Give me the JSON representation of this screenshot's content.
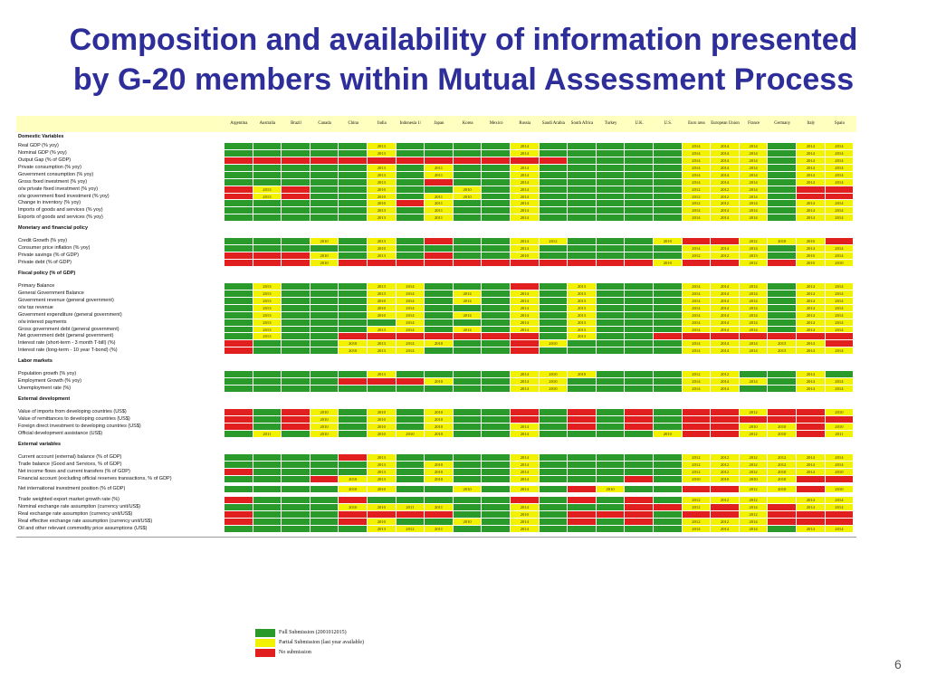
{
  "title": {
    "line1": "Composition and availability of information presented",
    "line2": "by G-20 members within Mutual Assessment Process"
  },
  "colors": {
    "G": "#2a9a2a",
    "Y": "#f2f200",
    "R": "#e21f1f"
  },
  "columns": [
    "Argentina",
    "Australia",
    "Brazil",
    "Canada",
    "China",
    "India",
    "Indonesia 1/",
    "Japan",
    "Korea",
    "Mexico",
    "Russia",
    "Saudi Arabia",
    "South Africa",
    "Turkey",
    "U.K.",
    "U.S.",
    "Euro area",
    "European Union",
    "France",
    "Germany",
    "Italy",
    "Spain"
  ],
  "rows": [
    {
      "type": "section",
      "label": "Domestic Variables"
    },
    {
      "type": "data",
      "label": "Real GDP (% yoy)",
      "cells": "GGGGGYGGGGYGGGGGYYYGYY",
      "years": {
        "5": "2013",
        "10": "2014",
        "16": "2014",
        "17": "2014",
        "18": "2014",
        "20": "2014",
        "21": "2014"
      }
    },
    {
      "type": "data",
      "label": "Nominal GDP (% yoy)",
      "cells": "GGGGGYGGGGYGGGGGYYYGYY",
      "years": {
        "5": "2013",
        "10": "2014",
        "16": "2014",
        "17": "2014",
        "18": "2014",
        "20": "2014",
        "21": "2014"
      }
    },
    {
      "type": "data",
      "label": "Output Gap (% of GDP)",
      "cells": "RRRRRRRRRRRRGGGGYYYGYY",
      "years": {
        "16": "2014",
        "17": "2014",
        "18": "2014",
        "20": "2014",
        "21": "2014"
      }
    },
    {
      "type": "data",
      "label": "Private consumption (% yoy)",
      "cells": "GGGGGYGYGGYGGGGGYYYGYY",
      "years": {
        "5": "2013",
        "7": "2011",
        "10": "2014",
        "16": "2014",
        "17": "2014",
        "18": "2014",
        "20": "2014",
        "21": "2014"
      }
    },
    {
      "type": "data",
      "label": "Government consumption (% yoy)",
      "cells": "GGGGGYGYGGYGGGGGYYYGYY",
      "years": {
        "5": "2013",
        "7": "2011",
        "10": "2014",
        "16": "2014",
        "17": "2014",
        "18": "2014",
        "20": "2014",
        "21": "2014"
      }
    },
    {
      "type": "data",
      "label": "Gross fixed investment (% yoy)",
      "cells": "GGGGGYGRGGYGGGGGYYYGYY",
      "years": {
        "5": "2013",
        "10": "2014",
        "16": "2014",
        "17": "2014",
        "18": "2014",
        "20": "2014",
        "21": "2014"
      }
    },
    {
      "type": "data",
      "label": "  o/w private fixed investment (% yoy)",
      "cells": "RYRGGYGGYGYGGGGGYYYGRR",
      "years": {
        "1": "2013",
        "5": "2010",
        "8": "2010",
        "10": "2014",
        "16": "2012",
        "17": "2012",
        "18": "2014"
      }
    },
    {
      "type": "data",
      "label": "  o/w government fixed investment (% yoy)",
      "cells": "RYRGGYGYYGYGGGGGYYYGRR",
      "years": {
        "1": "2013",
        "5": "2010",
        "7": "2011",
        "8": "2010",
        "10": "2014",
        "16": "2012",
        "17": "2012",
        "18": "2014"
      }
    },
    {
      "type": "data",
      "label": "Change in inventory (% yoy)",
      "cells": "GGGGGYRYGGYGGGGGYYYGYY",
      "years": {
        "5": "2010",
        "7": "2011",
        "10": "2014",
        "16": "2012",
        "17": "2012",
        "18": "2014",
        "20": "2014",
        "21": "2014"
      }
    },
    {
      "type": "data",
      "label": "Imports of goods and services (% yoy)",
      "cells": "GGGGGYGYGGYGGGGGYYYGYY",
      "years": {
        "5": "2013",
        "7": "2011",
        "10": "2014",
        "16": "2014",
        "17": "2014",
        "18": "2014",
        "20": "2014",
        "21": "2014"
      }
    },
    {
      "type": "data",
      "label": "Exports of goods and services (% yoy)",
      "cells": "GGGGGYGYGGYGGGGGYYYGYY",
      "years": {
        "5": "2013",
        "7": "2011",
        "10": "2014",
        "16": "2014",
        "17": "2014",
        "18": "2014",
        "20": "2014",
        "21": "2014"
      }
    },
    {
      "type": "blank"
    },
    {
      "type": "section",
      "label": "Monetary and financial policy"
    },
    {
      "type": "blank"
    },
    {
      "type": "data",
      "label": "Credit Growth (% yoy)",
      "cells": "GGGYGYGRGGYYGGGYRRYYYR",
      "years": {
        "3": "2010",
        "5": "2013",
        "10": "2014",
        "11": "2012",
        "15": "2010",
        "18": "2012",
        "19": "2010",
        "20": "2010"
      }
    },
    {
      "type": "data",
      "label": "Consumer price inflation (% yoy)",
      "cells": "GGGGGYGGGGYGGGGGYYYGYY",
      "years": {
        "5": "2010",
        "10": "2014",
        "16": "2014",
        "17": "2014",
        "18": "2014",
        "20": "2014",
        "21": "2014"
      }
    },
    {
      "type": "data",
      "label": "Private savings (% of GDP)",
      "cells": "RRRYGYGRGGYGGGGGYYYGYY",
      "years": {
        "3": "2010",
        "5": "2013",
        "10": "2010",
        "16": "2012",
        "17": "2012",
        "18": "2013",
        "20": "2010",
        "21": "2014"
      }
    },
    {
      "type": "data",
      "label": "Private debt (% of GDP)",
      "cells": "RRRYRRRRRRRRRRRYRRYRYY",
      "years": {
        "3": "2010",
        "15": "2010",
        "18": "2012",
        "20": "2010",
        "21": "2010"
      }
    },
    {
      "type": "blank"
    },
    {
      "type": "section",
      "label": "Fiscal policy (% of GDP)"
    },
    {
      "type": "blank"
    },
    {
      "type": "data",
      "label": "Primary Balance",
      "cells": "GYGGGYYGGGRGYGGGYYYGYY",
      "years": {
        "1": "2013",
        "5": "2013",
        "6": "2014",
        "12": "2013",
        "16": "2014",
        "17": "2014",
        "18": "2014",
        "20": "2014",
        "21": "2014"
      }
    },
    {
      "type": "data",
      "label": "General Government Balance",
      "cells": "GYGGGYYGYGYGYGGGYYYGYY",
      "years": {
        "1": "2013",
        "5": "2013",
        "6": "2014",
        "8": "2014",
        "10": "2014",
        "12": "2013",
        "16": "2014",
        "17": "2014",
        "18": "2014",
        "20": "2014",
        "21": "2014"
      }
    },
    {
      "type": "data",
      "label": "Government revenue (general government)",
      "cells": "GYGGGYYGYGYGYGGGYYYGYY",
      "years": {
        "1": "2013",
        "5": "2010",
        "6": "2014",
        "8": "2014",
        "10": "2014",
        "12": "2013",
        "16": "2014",
        "17": "2014",
        "18": "2014",
        "20": "2014",
        "21": "2014"
      }
    },
    {
      "type": "data",
      "label": "  o/w tax revenue",
      "cells": "GYGGGYYGGGYGYGGGYYYGYY",
      "years": {
        "1": "2013",
        "5": "2010",
        "6": "2014",
        "10": "2014",
        "12": "2013",
        "16": "2014",
        "17": "2014",
        "18": "2014",
        "20": "2014",
        "21": "2014"
      }
    },
    {
      "type": "data",
      "label": "Government expenditure (general government)",
      "cells": "GYGGGYYGYGYGYGGGYYYGYY",
      "years": {
        "1": "2013",
        "5": "2010",
        "6": "2014",
        "8": "2014",
        "10": "2014",
        "12": "2013",
        "16": "2014",
        "17": "2014",
        "18": "2014",
        "20": "2014",
        "21": "2014"
      }
    },
    {
      "type": "data",
      "label": "  o/w interest payments",
      "cells": "GYGGGGYGGGYGYGGGYYYGYY",
      "years": {
        "1": "2013",
        "6": "2014",
        "10": "2014",
        "12": "2013",
        "16": "2014",
        "17": "2014",
        "18": "2014",
        "20": "2014",
        "21": "2014"
      }
    },
    {
      "type": "data",
      "label": "Gross government debt (general government)",
      "cells": "GYGGGYYGYGYGYGGGYYYGYY",
      "years": {
        "1": "2013",
        "5": "2013",
        "6": "2014",
        "8": "2014",
        "10": "2014",
        "12": "2013",
        "16": "2014",
        "17": "2014",
        "18": "2014",
        "20": "2014",
        "21": "2014"
      }
    },
    {
      "type": "data",
      "label": "Net government debt (general government)",
      "cells": "GYGGRRRRRRRGYGGRRRRRRR",
      "years": {
        "1": "2013",
        "12": "2013"
      }
    },
    {
      "type": "data",
      "label": "Interest rate (short-term - 3 month T-bill) (%)",
      "cells": "RGGGYYYYGGRYGGGGYYYYYR",
      "years": {
        "4": "2010",
        "5": "2013",
        "6": "2014",
        "7": "2010",
        "11": "2010",
        "16": "2014",
        "17": "2014",
        "18": "2014",
        "19": "2013",
        "20": "2014"
      }
    },
    {
      "type": "data",
      "label": "Interest rate (long-term - 10 year T-bond) (%)",
      "cells": "RGGGYYYGGGRGGGGGYYYYYY",
      "years": {
        "4": "2010",
        "5": "2013",
        "6": "2014",
        "16": "2014",
        "17": "2014",
        "18": "2014",
        "19": "2013",
        "20": "2014",
        "21": "2014"
      }
    },
    {
      "type": "blank"
    },
    {
      "type": "section",
      "label": "Labor markets"
    },
    {
      "type": "blank"
    },
    {
      "type": "data",
      "label": "Population growth (% yoy)",
      "cells": "GGGGGYGGGGYYYGGGYYGGYG",
      "years": {
        "5": "2013",
        "10": "2014",
        "11": "2010",
        "12": "2010",
        "16": "2012",
        "17": "2012",
        "20": "2014"
      }
    },
    {
      "type": "data",
      "label": "Employment Growth (% yoy)",
      "cells": "GGGGRRRYGGYYGGGGYYYGYY",
      "years": {
        "7": "2010",
        "10": "2014",
        "11": "2010",
        "16": "2014",
        "17": "2014",
        "18": "2014",
        "20": "2014",
        "21": "2014"
      }
    },
    {
      "type": "data",
      "label": "Unemployment rate (%)",
      "cells": "GGGGGGGGGGYYGGGGYYGGYY",
      "years": {
        "10": "2014",
        "11": "2010",
        "16": "2014",
        "17": "2014",
        "20": "2014",
        "21": "2014"
      }
    },
    {
      "type": "blank"
    },
    {
      "type": "section",
      "label": "External development"
    },
    {
      "type": "blank"
    },
    {
      "type": "data",
      "label": "Value of imports from developing countries (US$)",
      "cells": "RGRYGYGYGGRGRGRGRRYRRY",
      "years": {
        "3": "2010",
        "5": "2010",
        "7": "2010",
        "18": "2012",
        "21": "2010"
      }
    },
    {
      "type": "data",
      "label": "Value of remittances to developing countries (US$)",
      "cells": "RGRYGYGYGGRGRGRGRRRRRR",
      "years": {
        "3": "2010",
        "5": "2010",
        "7": "2010"
      }
    },
    {
      "type": "data",
      "label": "Foreign direct investment to developing countries (US$)",
      "cells": "RGRYGYGYGGYGRGRGRRYYRY",
      "years": {
        "3": "2010",
        "5": "2010",
        "7": "2010",
        "10": "2014",
        "18": "2010",
        "19": "2010",
        "21": "2010"
      }
    },
    {
      "type": "data",
      "label": "Official development assistance (US$)",
      "cells": "GYGYGYYYGGYGGGGYRRYYRY",
      "years": {
        "1": "2011",
        "3": "2010",
        "5": "2010",
        "6": "2010",
        "7": "2010",
        "10": "2014",
        "15": "2010",
        "18": "2012",
        "19": "2010",
        "21": "2011"
      }
    },
    {
      "type": "blank"
    },
    {
      "type": "section",
      "label": "External variables"
    },
    {
      "type": "blank"
    },
    {
      "type": "data",
      "label": "Current account (external) balance (% of GDP)",
      "cells": "GGGGRYGGGGYGGGGGYYYYYY",
      "years": {
        "5": "2013",
        "10": "2014",
        "16": "2012",
        "17": "2012",
        "18": "2012",
        "19": "2012",
        "20": "2014",
        "21": "2014"
      }
    },
    {
      "type": "data",
      "label": "Trade balance (Good and Services, % of GDP)",
      "cells": "GGGGGYGYGGYGGGGGYYYYYY",
      "years": {
        "5": "2013",
        "7": "2010",
        "10": "2014",
        "16": "2012",
        "17": "2012",
        "18": "2012",
        "19": "2012",
        "20": "2014",
        "21": "2014"
      }
    },
    {
      "type": "data",
      "label": "Net income flows and current transfers (% of GDP)",
      "cells": "RGGGGYGYGGYGGGGGYYYYYY",
      "years": {
        "5": "2013",
        "7": "2010",
        "10": "2014",
        "16": "2012",
        "17": "2012",
        "18": "2012",
        "19": "2010",
        "20": "2014",
        "21": "2010"
      }
    },
    {
      "type": "data",
      "label": "Financial account (excluding official reserves transactions, % of GDP)",
      "cells": "GGGRYYGYGGYGGGRGYYYYRR",
      "years": {
        "4": "2010",
        "5": "2013",
        "7": "2010",
        "10": "2014",
        "16": "2010",
        "17": "2010",
        "18": "2010",
        "19": "2010"
      }
    },
    {
      "type": "blank"
    },
    {
      "type": "data",
      "label": "Net international investment position (% of GDP)",
      "cells": "GGGGYYGGYGYGRYGGRRYYRY",
      "years": {
        "4": "2010",
        "5": "2010",
        "8": "2010",
        "10": "2014",
        "13": "2010",
        "18": "2012",
        "19": "2010",
        "21": "2010"
      }
    },
    {
      "type": "blank"
    },
    {
      "type": "data",
      "label": "Trade weighted export market growth rate (%)",
      "cells": "RGGGRGGGGGRGRGRGYYYYYY",
      "years": {
        "16": "2012",
        "17": "2012",
        "18": "2012",
        "20": "2014",
        "21": "2014"
      }
    },
    {
      "type": "data",
      "label": "Nominal exchange rate assumption (currency unit/US$)",
      "cells": "GGGGYYYYGGYGGGRRYRYRYY",
      "years": {
        "4": "2010",
        "5": "2010",
        "6": "2011",
        "7": "2011",
        "10": "2014",
        "16": "2012",
        "18": "2014",
        "20": "2014",
        "21": "2014"
      }
    },
    {
      "type": "data",
      "label": "Real exchange rate assumption (currency unit/US$)",
      "cells": "RGGGRRRRGGYGRRRGRRYRRR",
      "years": {
        "10": "2010",
        "18": "2012"
      }
    },
    {
      "type": "data",
      "label": "Real effective exchange rate assumption (currency unit/US$)",
      "cells": "RGGGRYGGYGYGRGRGYYYRRR",
      "years": {
        "5": "2010",
        "8": "2010",
        "10": "2014",
        "16": "2012",
        "17": "2012",
        "18": "2014"
      }
    },
    {
      "type": "data",
      "label": "Oil and other relevant commodity price assumptions (US$)",
      "cells": "GGGGGYYYGGYGGGGGYYYGYY",
      "years": {
        "5": "2013",
        "6": "2012",
        "7": "2011",
        "10": "2014",
        "16": "2014",
        "17": "2014",
        "18": "2014",
        "20": "2014",
        "21": "2014"
      }
    }
  ],
  "legend": [
    {
      "key": "G",
      "label": "Full Submission (2001012015)"
    },
    {
      "key": "Y",
      "label": "Partial Submission (last year available)"
    },
    {
      "key": "R",
      "label": "No submission"
    }
  ],
  "page_number": "6"
}
